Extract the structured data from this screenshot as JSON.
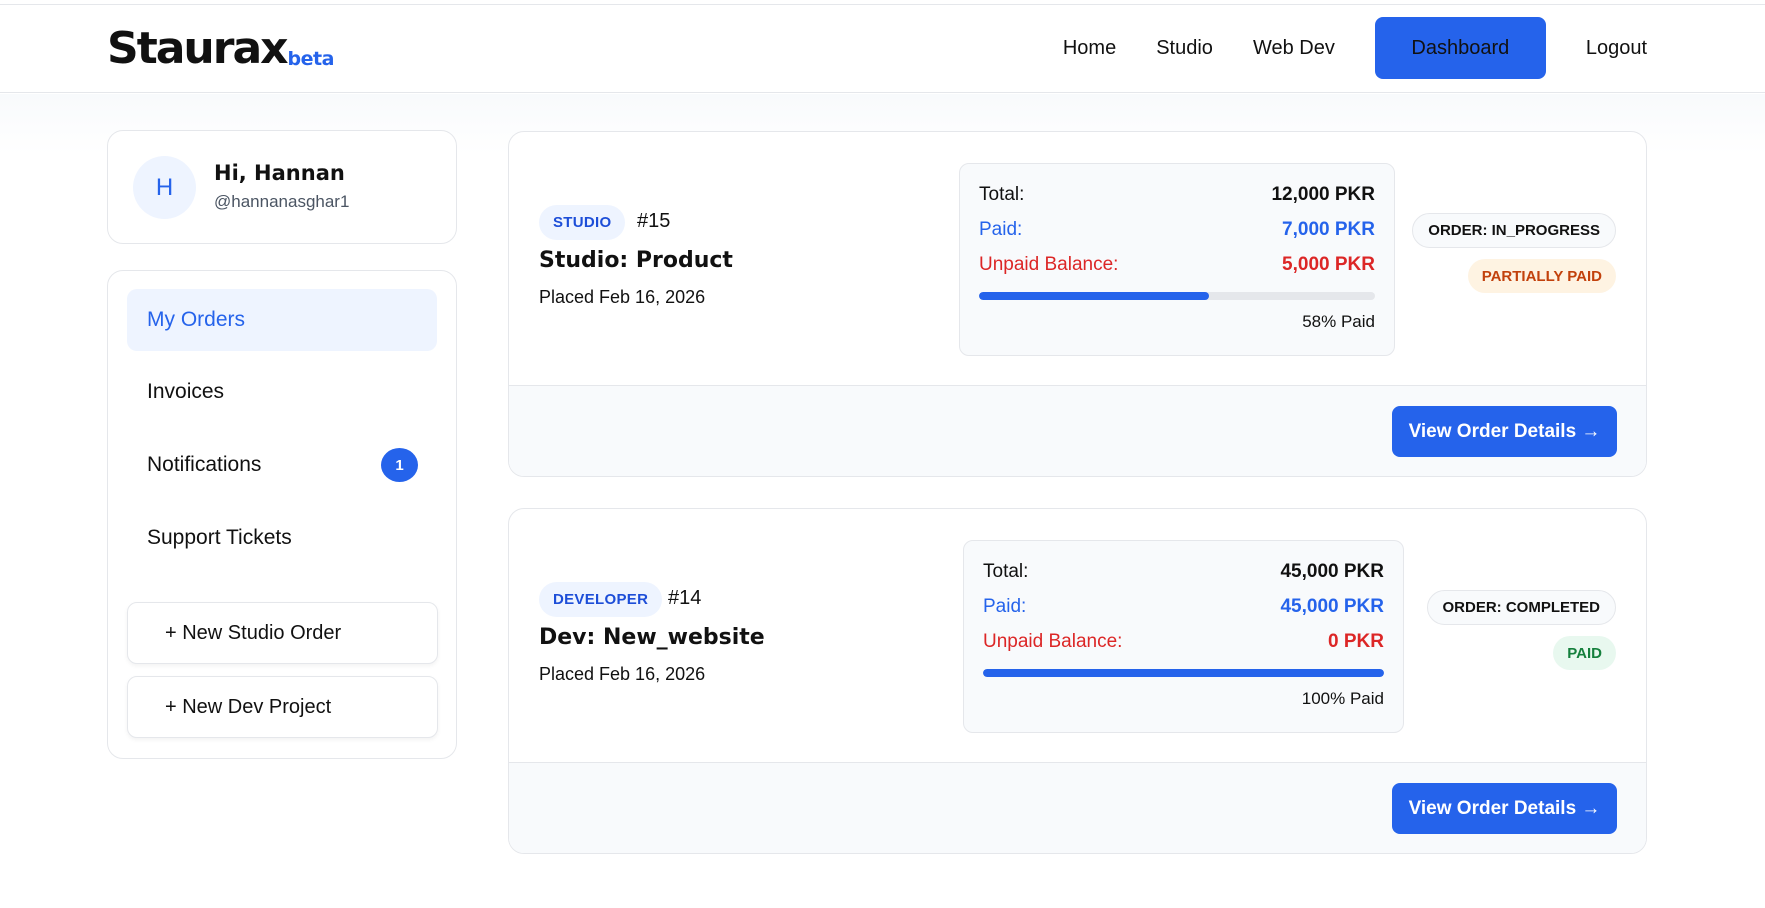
{
  "brand": {
    "name": "Staurax",
    "tag": "beta"
  },
  "nav": {
    "home": "Home",
    "studio": "Studio",
    "webdev": "Web Dev",
    "dashboard": "Dashboard",
    "logout": "Logout"
  },
  "profile": {
    "initial": "H",
    "greeting": "Hi, Hannan",
    "handle": "@hannanasghar1"
  },
  "sidebar": {
    "items": [
      {
        "label": "My Orders",
        "active": true
      },
      {
        "label": "Invoices"
      },
      {
        "label": "Notifications",
        "badge": "1"
      },
      {
        "label": "Support Tickets"
      }
    ],
    "new_studio": "+ New Studio Order",
    "new_dev": "+ New Dev Project"
  },
  "orders": [
    {
      "type": "STUDIO",
      "number": "#15",
      "title": "Studio: Product",
      "placed": "Placed Feb 16, 2026",
      "total_label": "Total:",
      "total": "12,000 PKR",
      "paid_label": "Paid:",
      "paid": "7,000 PKR",
      "unpaid_label": "Unpaid Balance:",
      "unpaid": "5,000 PKR",
      "progress": 58,
      "progress_text": "58% Paid",
      "status": "ORDER: IN_PROGRESS",
      "payment_status": "PARTIALLY PAID",
      "action": "View Order Details →"
    },
    {
      "type": "DEVELOPER",
      "number": "#14",
      "title": "Dev: New_website",
      "placed": "Placed Feb 16, 2026",
      "total_label": "Total:",
      "total": "45,000 PKR",
      "paid_label": "Paid:",
      "paid": "45,000 PKR",
      "unpaid_label": "Unpaid Balance:",
      "unpaid": "0 PKR",
      "progress": 100,
      "progress_text": "100% Paid",
      "status": "ORDER: COMPLETED",
      "payment_status": "PAID",
      "action": "View Order Details →"
    }
  ],
  "colors": {
    "accent": "#2563eb",
    "danger": "#dc2626",
    "success": "#15803d",
    "warning": "#c2410c"
  }
}
